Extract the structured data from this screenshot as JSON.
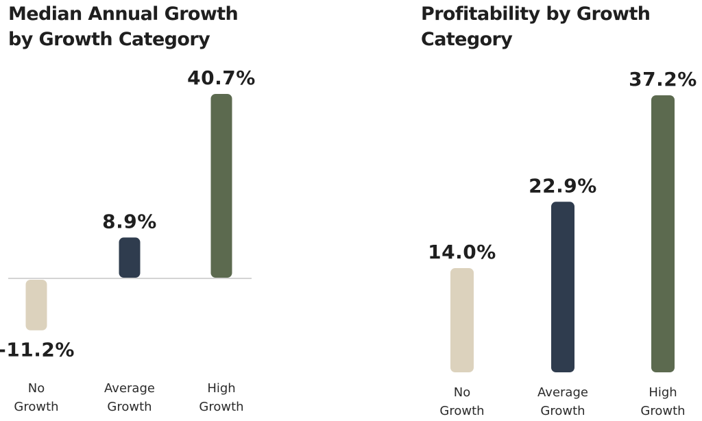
{
  "chart_data": [
    {
      "type": "bar",
      "title": "Median Annual Growth by Growth Category",
      "title_lines": [
        "Median Annual Growth",
        "by Growth Category"
      ],
      "categories": [
        "No Growth",
        "Average Growth",
        "High Growth"
      ],
      "category_lines": [
        [
          "No",
          "Growth"
        ],
        [
          "Average",
          "Growth"
        ],
        [
          "High",
          "Growth"
        ]
      ],
      "values": [
        -11.2,
        8.9,
        40.7
      ],
      "value_labels": [
        "-11.2%",
        "8.9%",
        "40.7%"
      ],
      "colors": [
        "#dcd2bd",
        "#2f3c4e",
        "#5c6a4f"
      ],
      "baseline_color": "#d4d4d4",
      "unit": "%",
      "xlabel": "",
      "ylabel": "",
      "ylim": [
        -11.2,
        40.7
      ],
      "grid": false,
      "baseline": true
    },
    {
      "type": "bar",
      "title": "Profitability by Growth Category",
      "title_lines": [
        "Profitability by Growth",
        "Category"
      ],
      "categories": [
        "No Growth",
        "Average Growth",
        "High Growth"
      ],
      "category_lines": [
        [
          "No",
          "Growth"
        ],
        [
          "Average",
          "Growth"
        ],
        [
          "High",
          "Growth"
        ]
      ],
      "values": [
        14.0,
        22.9,
        37.2
      ],
      "value_labels": [
        "14.0%",
        "22.9%",
        "37.2%"
      ],
      "colors": [
        "#dcd2bd",
        "#2f3c4e",
        "#5c6a4f"
      ],
      "unit": "%",
      "xlabel": "",
      "ylabel": "",
      "ylim": [
        0,
        37.2
      ],
      "grid": false,
      "baseline": false
    }
  ]
}
